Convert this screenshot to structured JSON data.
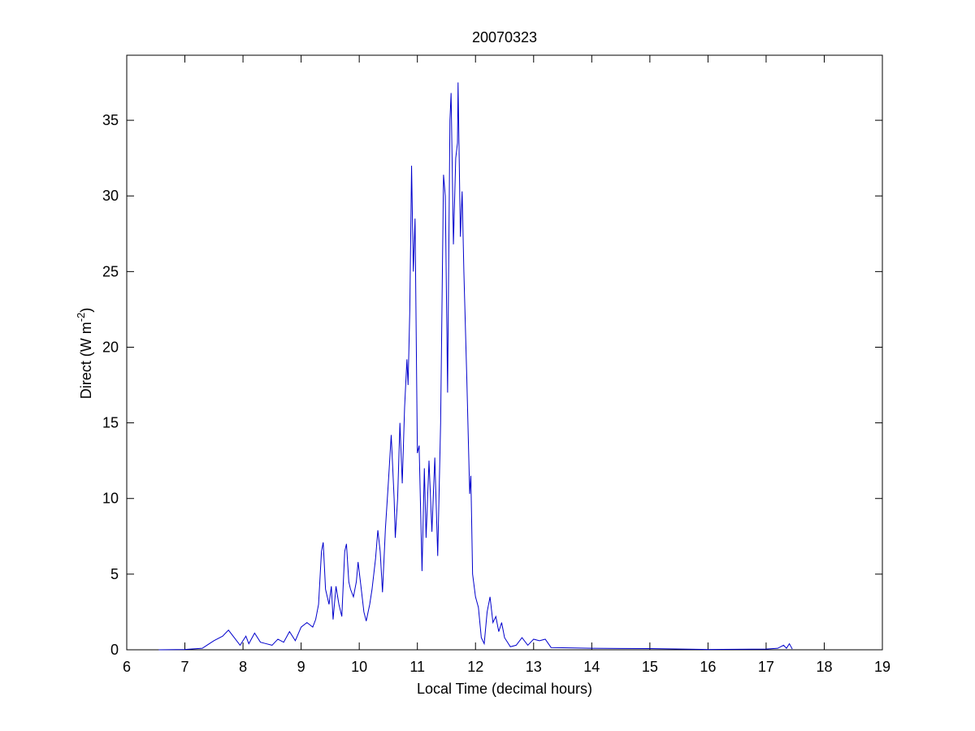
{
  "chart_data": {
    "type": "line",
    "title": "20070323",
    "xlabel": "Local Time (decimal hours)",
    "ylabel": "Direct (W m",
    "ylabel_sup": "-2",
    "ylabel_end": ")",
    "color": "#0000cc",
    "xlim": [
      6,
      19
    ],
    "xticks": [
      6,
      7,
      8,
      9,
      10,
      11,
      12,
      13,
      14,
      15,
      16,
      17,
      18,
      19
    ],
    "ylim": [
      0,
      39.3
    ],
    "yticks": [
      0,
      5,
      10,
      15,
      20,
      25,
      30,
      35
    ],
    "x": [
      6.55,
      7.0,
      7.3,
      7.5,
      7.65,
      7.75,
      7.85,
      7.95,
      8.05,
      8.1,
      8.2,
      8.3,
      8.4,
      8.5,
      8.6,
      8.7,
      8.8,
      8.9,
      9.0,
      9.1,
      9.2,
      9.25,
      9.3,
      9.35,
      9.38,
      9.42,
      9.48,
      9.52,
      9.55,
      9.6,
      9.65,
      9.7,
      9.75,
      9.78,
      9.82,
      9.85,
      9.9,
      9.95,
      9.98,
      10.02,
      10.08,
      10.12,
      10.18,
      10.22,
      10.28,
      10.32,
      10.36,
      10.4,
      10.45,
      10.5,
      10.55,
      10.6,
      10.62,
      10.66,
      10.7,
      10.74,
      10.78,
      10.82,
      10.84,
      10.87,
      10.9,
      10.93,
      10.96,
      11.0,
      11.03,
      11.08,
      11.12,
      11.15,
      11.2,
      11.25,
      11.3,
      11.35,
      11.4,
      11.45,
      11.48,
      11.52,
      11.56,
      11.58,
      11.62,
      11.66,
      11.69,
      11.7,
      11.74,
      11.77,
      11.8,
      11.85,
      11.9,
      11.92,
      11.95,
      12.0,
      12.05,
      12.1,
      12.15,
      12.2,
      12.25,
      12.3,
      12.35,
      12.4,
      12.45,
      12.5,
      12.6,
      12.7,
      12.8,
      12.9,
      13.0,
      13.1,
      13.2,
      13.3,
      14.0,
      15.0,
      16.0,
      17.0,
      17.2,
      17.3,
      17.35,
      17.4,
      17.45
    ],
    "values": [
      0,
      0.02,
      0.1,
      0.6,
      0.9,
      1.3,
      0.8,
      0.3,
      0.9,
      0.4,
      1.1,
      0.5,
      0.4,
      0.3,
      0.7,
      0.5,
      1.2,
      0.6,
      1.5,
      1.8,
      1.5,
      2.0,
      3.0,
      6.5,
      7.1,
      4.0,
      3.0,
      4.2,
      2.0,
      4.2,
      3.0,
      2.2,
      6.5,
      7.0,
      4.5,
      4.0,
      3.5,
      4.5,
      5.8,
      4.5,
      2.5,
      1.9,
      3.0,
      4.0,
      6.0,
      7.9,
      6.5,
      3.8,
      8.0,
      11.0,
      14.2,
      10.0,
      7.4,
      10.0,
      15.0,
      11.0,
      16.0,
      19.2,
      17.5,
      22.5,
      32.0,
      25.0,
      28.5,
      13.0,
      13.5,
      5.2,
      12.0,
      7.4,
      12.5,
      7.8,
      12.7,
      6.2,
      15.0,
      31.4,
      30.0,
      17.0,
      35.0,
      36.8,
      26.8,
      32.5,
      33.5,
      37.5,
      27.3,
      30.3,
      25.0,
      18.0,
      10.3,
      11.5,
      5.0,
      3.5,
      2.8,
      0.8,
      0.4,
      2.5,
      3.5,
      1.8,
      2.2,
      1.2,
      1.8,
      0.8,
      0.2,
      0.3,
      0.8,
      0.3,
      0.7,
      0.6,
      0.7,
      0.15,
      0.1,
      0.08,
      0.02,
      0.05,
      0.1,
      0.3,
      0.1,
      0.4,
      0.05
    ]
  }
}
